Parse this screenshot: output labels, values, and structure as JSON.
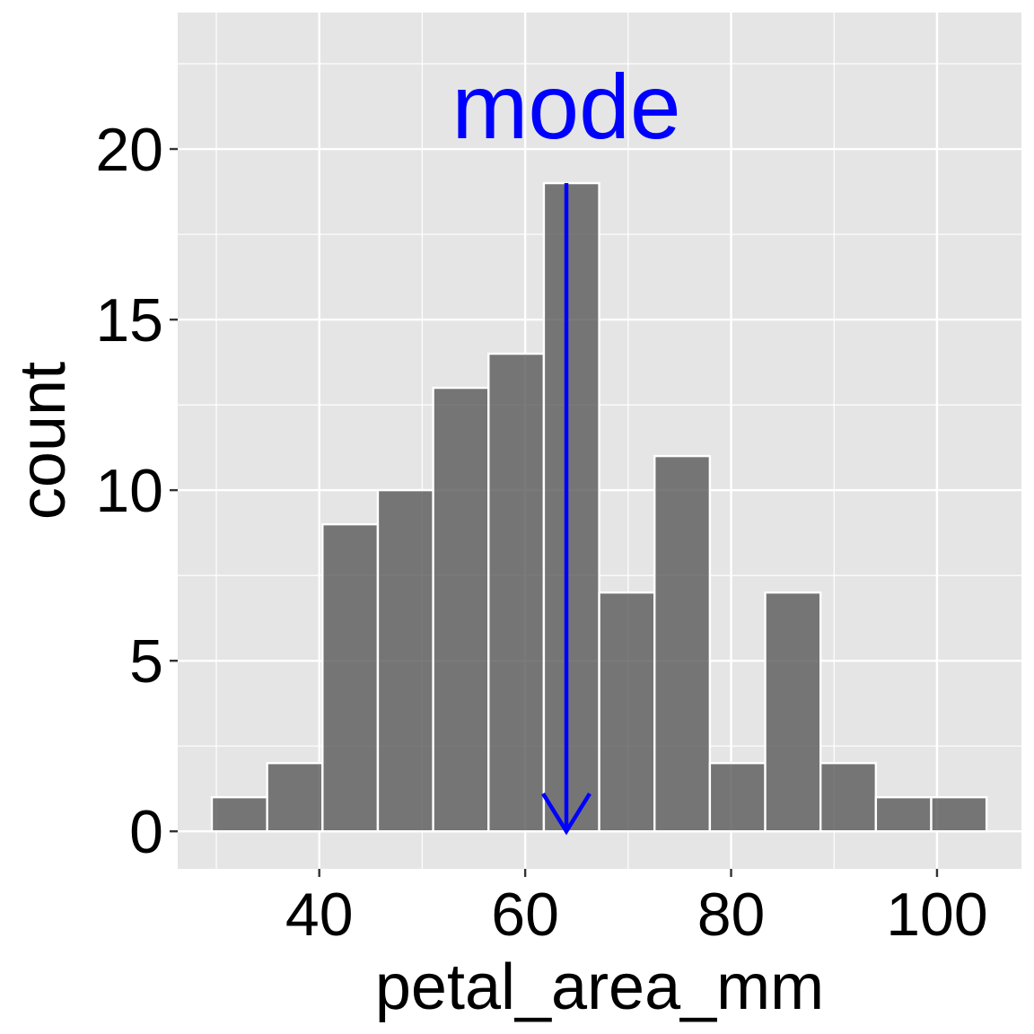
{
  "chart_data": {
    "type": "bar",
    "subtype": "histogram",
    "xlabel": "petal_area_mm",
    "ylabel": "count",
    "bin_centers": [
      32.25,
      37.625,
      43.0,
      48.375,
      53.75,
      59.125,
      64.5,
      69.875,
      75.25,
      80.625,
      86.0,
      91.375,
      96.75,
      102.125
    ],
    "counts": [
      1,
      2,
      9,
      10,
      13,
      14,
      19,
      7,
      11,
      2,
      7,
      2,
      1,
      1
    ],
    "bin_width": 5.375,
    "xlim": [
      26.25,
      108.2
    ],
    "ylim": [
      -1.1,
      24
    ],
    "xticks": [
      40,
      60,
      80,
      100
    ],
    "xtick_labels": [
      "40",
      "60",
      "80",
      "100"
    ],
    "yticks": [
      0,
      5,
      10,
      15,
      20
    ],
    "ytick_labels": [
      "0",
      "5",
      "10",
      "15",
      "20"
    ],
    "grid": true,
    "annotation": {
      "text": "mode",
      "x": 64,
      "arrow_from_y": 19,
      "arrow_to_y": 0,
      "color": "#0000ff"
    },
    "colors": {
      "panel_background": "#e5e5e5",
      "grid": "#ffffff",
      "bar_fill": "#595959",
      "bar_stroke": "#ffffff",
      "annotation": "#0000ff"
    }
  }
}
